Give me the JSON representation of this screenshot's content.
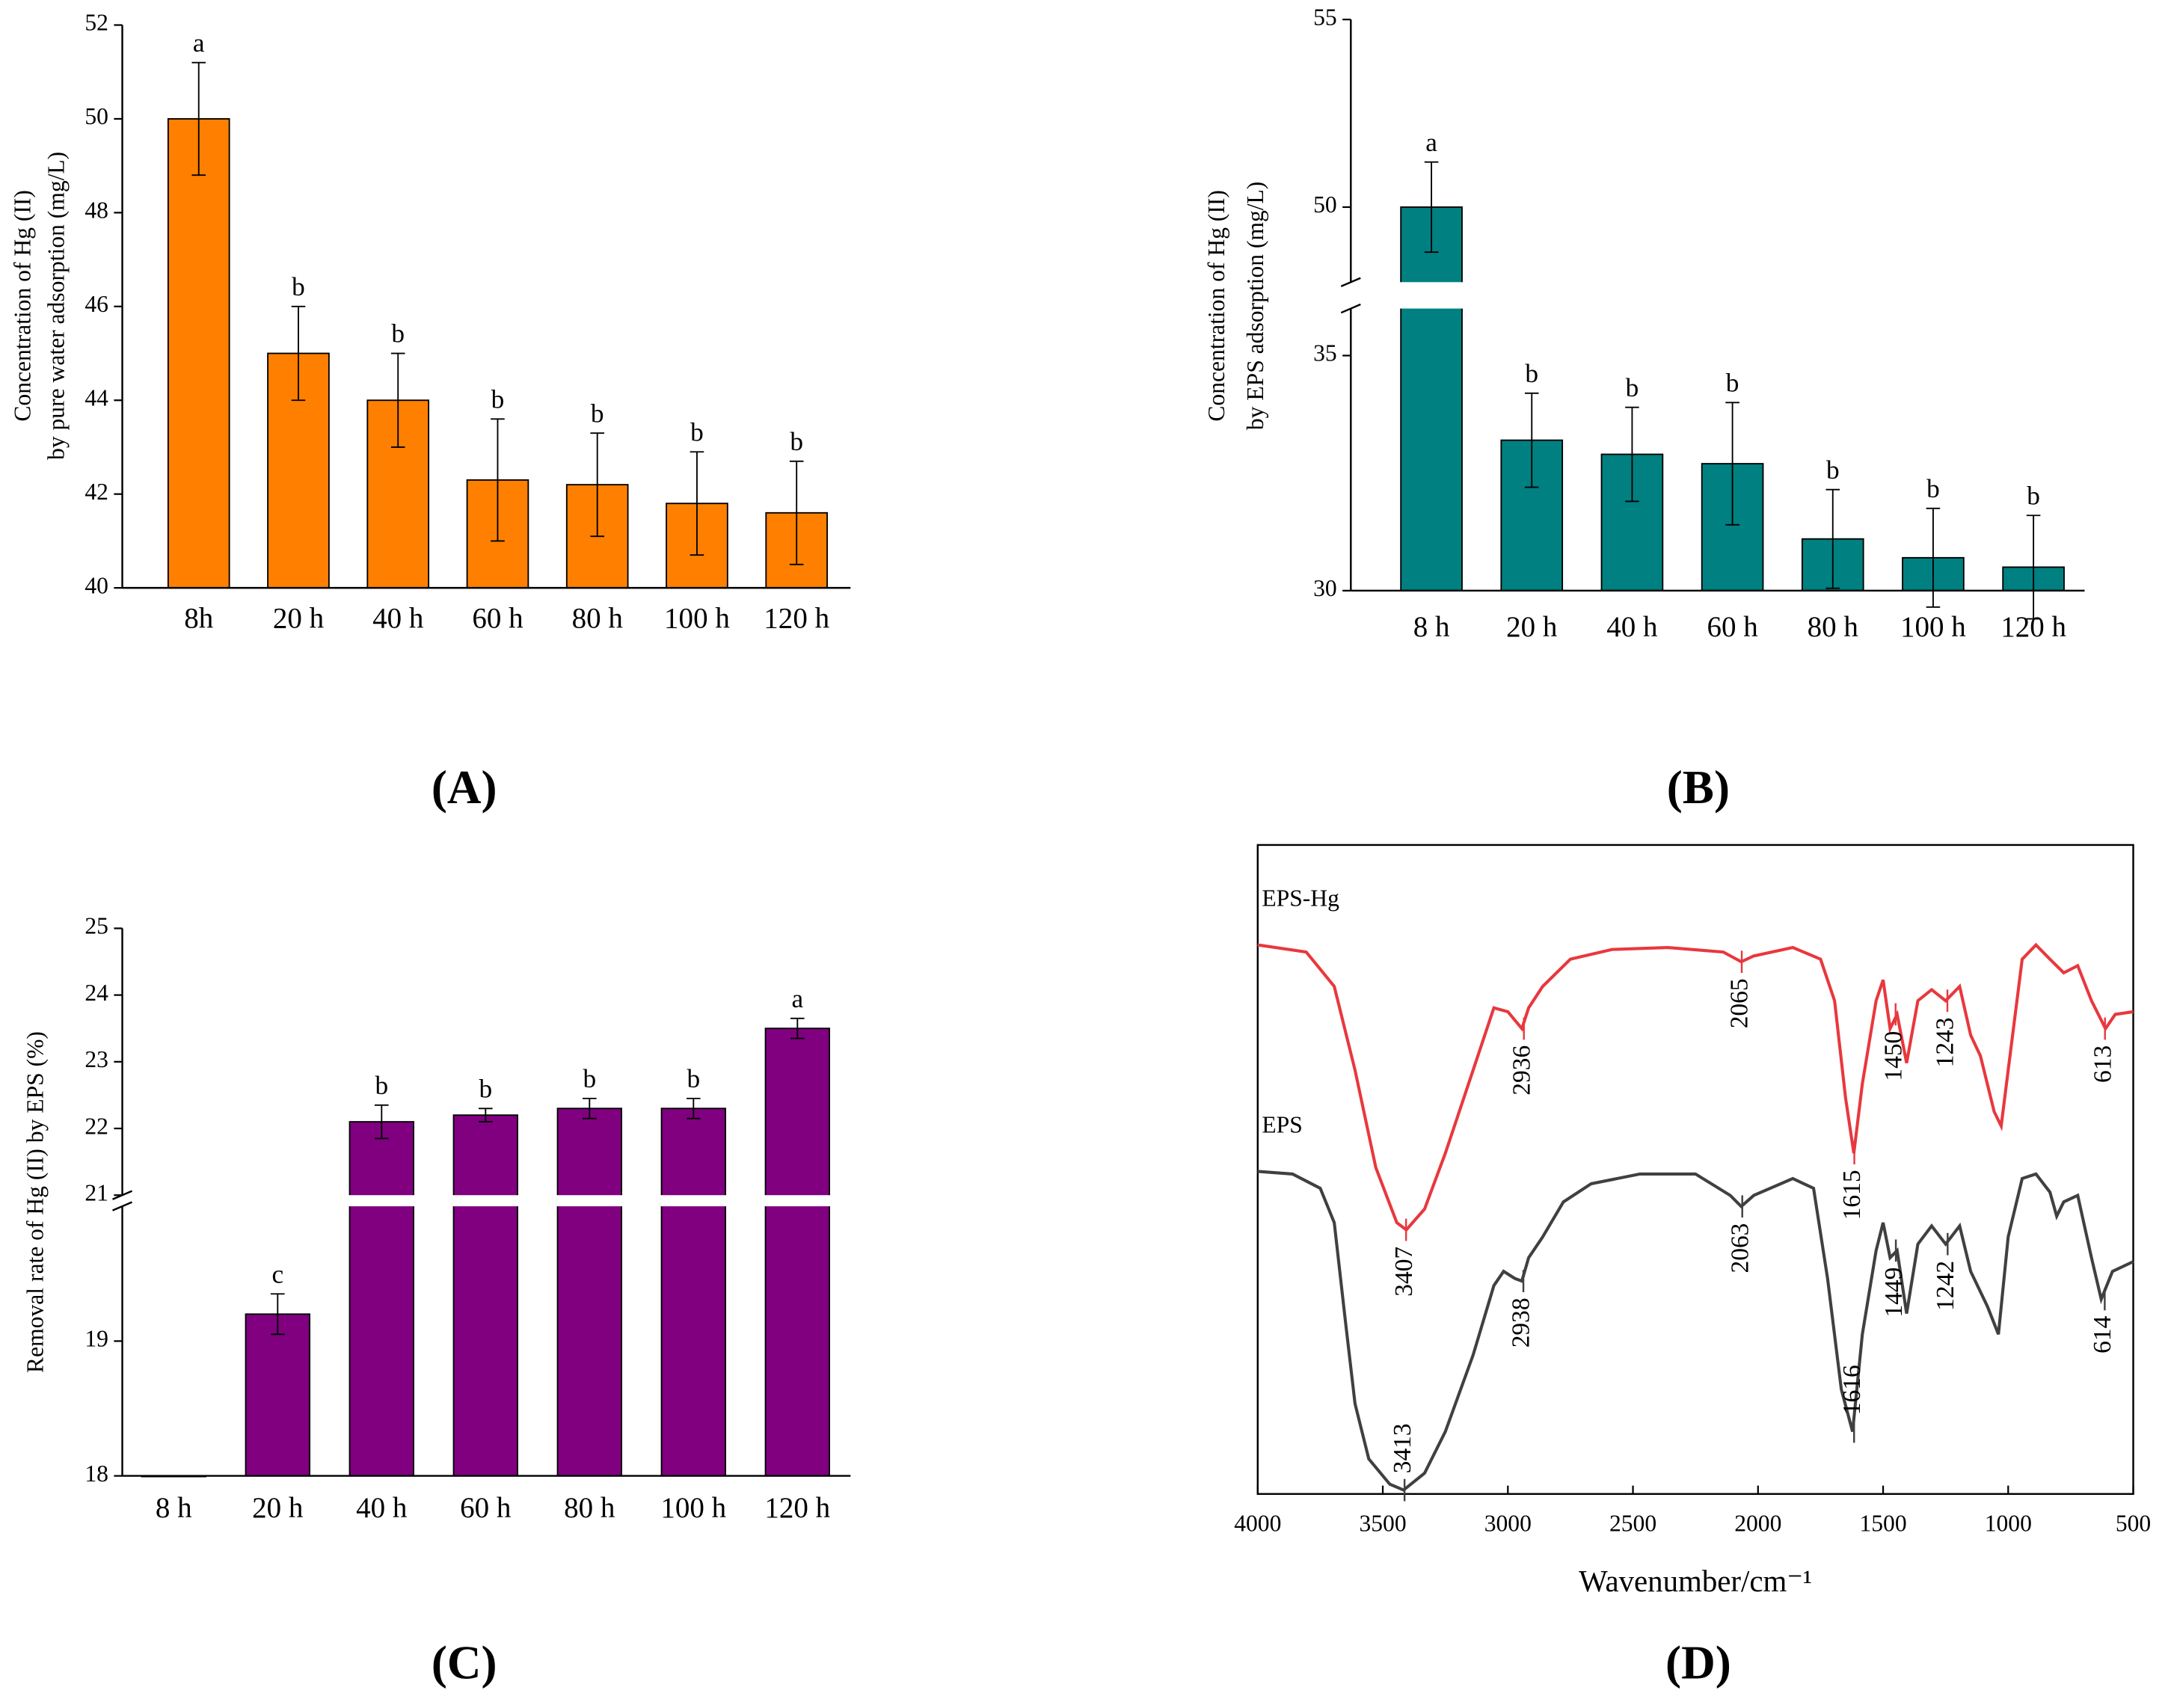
{
  "chart_data": [
    {
      "type": "bar",
      "panel": "(A)",
      "ylabel": [
        "Concentration  of  Hg (II)",
        "by pure water adsorption (mg/L)"
      ],
      "categories": [
        "8h",
        "20 h",
        "40 h",
        "60 h",
        "80 h",
        "100 h",
        "120 h"
      ],
      "values": [
        50,
        45,
        44,
        42.3,
        42.2,
        41.8,
        41.6
      ],
      "errors": [
        1.2,
        1,
        1,
        1.3,
        1.1,
        1.1,
        1.1
      ],
      "annotations": [
        "a",
        "b",
        "b",
        "b",
        "b",
        "b",
        "b"
      ],
      "color": "#ff8000",
      "ylim": [
        40,
        52
      ],
      "yticks": [
        40,
        42,
        44,
        46,
        48,
        50,
        52
      ]
    },
    {
      "type": "bar",
      "panel": "(B)",
      "ylabel": [
        "Concentration of Hg (II)",
        "by EPS adsorption (mg/L)"
      ],
      "categories": [
        "8 h",
        "20 h",
        "40 h",
        "60 h",
        "80 h",
        "100 h",
        "120 h"
      ],
      "values": [
        50,
        33.2,
        32.9,
        32.7,
        31.1,
        30.7,
        30.5
      ],
      "errors": [
        1.2,
        1,
        1,
        1.3,
        1.05,
        1.05,
        1.1
      ],
      "annotations": [
        "a",
        "b",
        "b",
        "b",
        "b",
        "b",
        "b"
      ],
      "color": "#008080",
      "ylim": [
        30,
        55
      ],
      "ybreak": [
        36,
        48
      ],
      "yticks": [
        30,
        35,
        50,
        55
      ]
    },
    {
      "type": "bar",
      "panel": "(C)",
      "ylabel": [
        "Removal rate of Hg (II) by EPS (%)"
      ],
      "categories": [
        "8 h",
        "20 h",
        "40 h",
        "60 h",
        "80 h",
        "100 h",
        "120 h"
      ],
      "values": [
        18,
        19.2,
        22.1,
        22.2,
        22.3,
        22.3,
        23.5
      ],
      "errors": [
        0,
        0.15,
        0.25,
        0.1,
        0.15,
        0.15,
        0.15
      ],
      "annotations": [
        null,
        "c",
        "b",
        "b",
        "b",
        "b",
        "a"
      ],
      "color": "#800080",
      "ylim": [
        18,
        25
      ],
      "ybreak": [
        20,
        21
      ],
      "yticks": [
        18,
        19,
        21,
        22,
        23,
        24,
        25
      ]
    },
    {
      "type": "line",
      "panel": "(D)",
      "xlabel": "Wavenumber/cm⁻¹",
      "xlim": [
        4000,
        500
      ],
      "xticks": [
        4000,
        3500,
        3000,
        2500,
        2000,
        1500,
        1000,
        500
      ],
      "ylim": [
        0,
        100
      ],
      "series": [
        {
          "name": "EPS-Hg",
          "color": "#e8383d",
          "x": [
            4000,
            3806,
            3694,
            3611,
            3528,
            3444,
            3406,
            3333,
            3250,
            3139,
            3056,
            3000,
            2944,
            2917,
            2861,
            2750,
            2583,
            2361,
            2139,
            2067,
            2017,
            1861,
            1750,
            1694,
            1650,
            1617,
            1583,
            1528,
            1500,
            1472,
            1444,
            1406,
            1361,
            1306,
            1250,
            1194,
            1150,
            1111,
            1056,
            1028,
            1000,
            944,
            889,
            833,
            778,
            722,
            667,
            611,
            572,
            500
          ],
          "values": [
            84.6,
            83.5,
            78.2,
            65.3,
            50.3,
            41.8,
            40.7,
            43.9,
            52.5,
            65.3,
            74.9,
            74.3,
            71.7,
            74.9,
            78.2,
            82.4,
            83.9,
            84.2,
            83.5,
            82.0,
            82.9,
            84.2,
            82.4,
            76.0,
            61.0,
            52.5,
            63.2,
            76.0,
            79.2,
            71.7,
            73.9,
            66.4,
            76.0,
            77.7,
            76.0,
            78.2,
            70.7,
            67.5,
            58.9,
            56.7,
            65.3,
            82.4,
            84.6,
            82.4,
            80.3,
            81.4,
            76.0,
            71.7,
            73.9,
            74.3
          ],
          "peaks": [
            3407,
            2936,
            2065,
            1615,
            1450,
            1243,
            613
          ]
        },
        {
          "name": "EPS",
          "color": "#404040",
          "x": [
            4000,
            3861,
            3750,
            3694,
            3650,
            3611,
            3556,
            3472,
            3417,
            3333,
            3250,
            3139,
            3056,
            3017,
            2972,
            2944,
            2917,
            2861,
            2778,
            2667,
            2472,
            2250,
            2111,
            2067,
            2017,
            1861,
            1778,
            1722,
            1667,
            1622,
            1583,
            1528,
            1500,
            1472,
            1444,
            1406,
            1361,
            1306,
            1250,
            1194,
            1150,
            1083,
            1039,
            1000,
            944,
            889,
            833,
            806,
            778,
            722,
            667,
            628,
            583,
            500
          ],
          "values": [
            49.7,
            49.3,
            47.1,
            41.8,
            26.8,
            13.9,
            5.4,
            1.5,
            0.6,
            3.2,
            9.6,
            21.4,
            32.1,
            34.3,
            33.2,
            32.8,
            36.4,
            39.6,
            45.0,
            47.8,
            49.3,
            49.3,
            46.0,
            44.3,
            46.0,
            48.6,
            47.1,
            33.2,
            16.1,
            9.6,
            24.6,
            37.5,
            41.8,
            36.4,
            37.5,
            27.8,
            38.5,
            41.3,
            38.5,
            41.3,
            34.3,
            28.9,
            24.6,
            39.6,
            48.6,
            49.3,
            46.5,
            42.8,
            45.0,
            46.0,
            36.4,
            30.0,
            34.3,
            35.8
          ],
          "peaks": [
            3413,
            2938,
            2063,
            1616,
            1449,
            1242,
            614
          ]
        }
      ]
    }
  ]
}
